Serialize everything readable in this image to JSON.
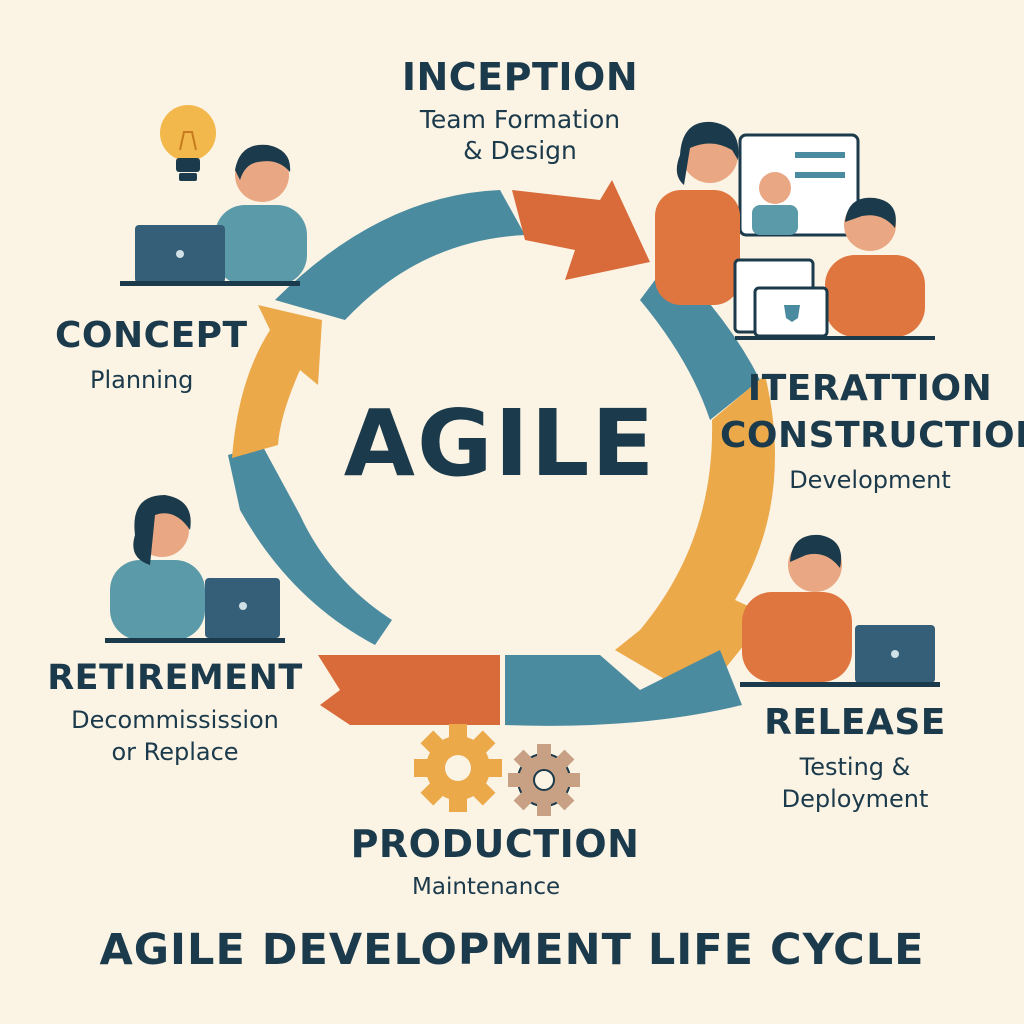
{
  "center": {
    "label": "AGILE"
  },
  "stages": {
    "inception": {
      "title": "INCEPTION",
      "line1": "Team Formation",
      "line2": "& Design"
    },
    "iteration": {
      "title1": "ITERATTION",
      "title2": "CONSTRUCTION",
      "line1": "Development"
    },
    "release": {
      "title": "RELEASE",
      "line1": "Testing &",
      "line2": "Deployment"
    },
    "production": {
      "title": "PRODUCTION",
      "line1": "Maintenance"
    },
    "retirement": {
      "title": "RETIREMENT",
      "line1": "Decommissission",
      "line2": "or Replace"
    },
    "concept": {
      "title": "CONCEPT",
      "line1": "Planning"
    }
  },
  "footer": {
    "title": "AGILE DEVELOPMENT LIFE CYCLE"
  },
  "colors": {
    "navy": "#1b3a4b",
    "teal": "#4a8ba0",
    "orange": "#d96a3a",
    "yellow": "#eba94a",
    "background": "#fbf3e4",
    "skin": "#e9a883"
  },
  "icons": [
    "lightbulb-icon",
    "laptop-icon",
    "gear-icon",
    "document-icon"
  ]
}
